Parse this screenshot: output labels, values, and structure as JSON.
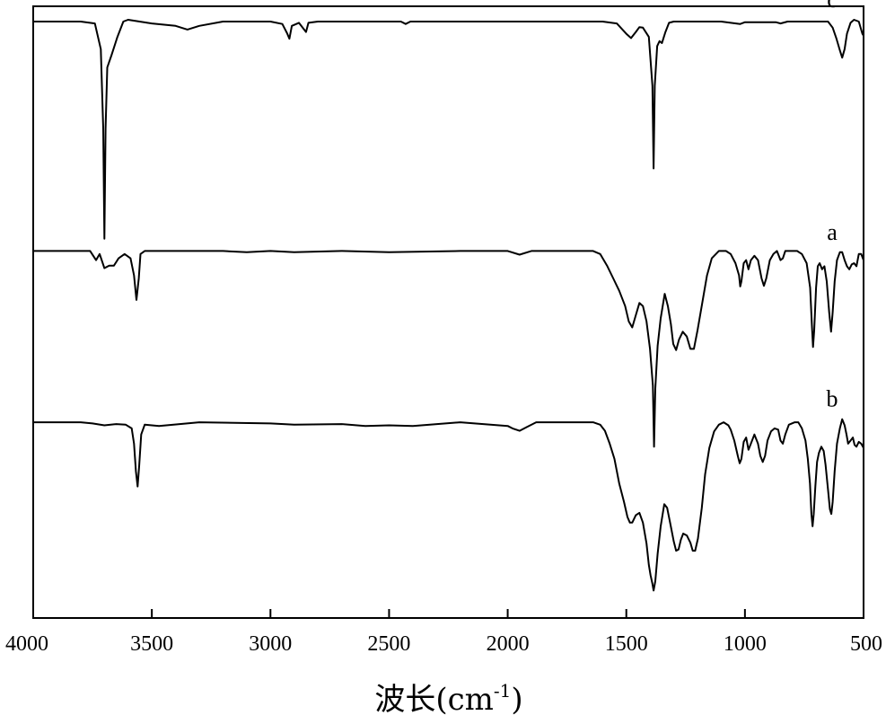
{
  "chart_data": {
    "type": "line",
    "xlabel": {
      "main": "波长(cm",
      "sup": "-1",
      "end": ")"
    },
    "ylabel": "",
    "xlim": [
      4000,
      500
    ],
    "xticks": [
      4000,
      3500,
      3000,
      2500,
      2000,
      1500,
      1000,
      500
    ],
    "ylim": [
      0,
      100
    ],
    "yticks": [],
    "grid": false,
    "legend": "none",
    "series": [
      {
        "name": "c",
        "points": [
          [
            4000,
            97.5
          ],
          [
            3800,
            97.5
          ],
          [
            3740,
            97.2
          ],
          [
            3715,
            93
          ],
          [
            3705,
            80
          ],
          [
            3700,
            62
          ],
          [
            3695,
            80
          ],
          [
            3688,
            90
          ],
          [
            3670,
            92
          ],
          [
            3645,
            95
          ],
          [
            3620,
            97.5
          ],
          [
            3600,
            97.8
          ],
          [
            3500,
            97.2
          ],
          [
            3400,
            96.8
          ],
          [
            3350,
            96.2
          ],
          [
            3300,
            96.8
          ],
          [
            3200,
            97.5
          ],
          [
            3000,
            97.5
          ],
          [
            2950,
            97.1
          ],
          [
            2930,
            95.6
          ],
          [
            2920,
            94.7
          ],
          [
            2910,
            96.8
          ],
          [
            2880,
            97.3
          ],
          [
            2860,
            96.3
          ],
          [
            2850,
            95.8
          ],
          [
            2840,
            97.3
          ],
          [
            2800,
            97.5
          ],
          [
            2450,
            97.5
          ],
          [
            2430,
            97.1
          ],
          [
            2410,
            97.5
          ],
          [
            1600,
            97.5
          ],
          [
            1540,
            97.2
          ],
          [
            1500,
            95.5
          ],
          [
            1480,
            94.8
          ],
          [
            1460,
            95.8
          ],
          [
            1445,
            96.6
          ],
          [
            1430,
            96.5
          ],
          [
            1405,
            95
          ],
          [
            1390,
            87
          ],
          [
            1385,
            73.5
          ],
          [
            1380,
            87
          ],
          [
            1370,
            93.5
          ],
          [
            1360,
            94.3
          ],
          [
            1350,
            94
          ],
          [
            1335,
            95.8
          ],
          [
            1320,
            97.3
          ],
          [
            1300,
            97.5
          ],
          [
            1100,
            97.5
          ],
          [
            1020,
            97.1
          ],
          [
            1000,
            97.4
          ],
          [
            870,
            97.4
          ],
          [
            850,
            97.2
          ],
          [
            820,
            97.5
          ],
          [
            650,
            97.5
          ],
          [
            630,
            96.5
          ],
          [
            615,
            94.8
          ],
          [
            600,
            92.8
          ],
          [
            590,
            91.6
          ],
          [
            580,
            93
          ],
          [
            570,
            95.5
          ],
          [
            555,
            97.3
          ],
          [
            540,
            97.8
          ],
          [
            520,
            97.5
          ],
          [
            505,
            95.5
          ],
          [
            500,
            95.2
          ]
        ]
      },
      {
        "name": "a",
        "points": [
          [
            4000,
            60
          ],
          [
            3760,
            60
          ],
          [
            3735,
            58.5
          ],
          [
            3720,
            59.5
          ],
          [
            3700,
            57.2
          ],
          [
            3680,
            57.6
          ],
          [
            3660,
            57.6
          ],
          [
            3640,
            58.8
          ],
          [
            3615,
            59.5
          ],
          [
            3590,
            58.8
          ],
          [
            3575,
            56
          ],
          [
            3565,
            52
          ],
          [
            3555,
            55.5
          ],
          [
            3548,
            59.5
          ],
          [
            3530,
            60
          ],
          [
            3200,
            60
          ],
          [
            3100,
            59.8
          ],
          [
            3000,
            60
          ],
          [
            2900,
            59.8
          ],
          [
            2700,
            60
          ],
          [
            2500,
            59.8
          ],
          [
            2200,
            60
          ],
          [
            2000,
            60
          ],
          [
            1950,
            59.4
          ],
          [
            1900,
            60
          ],
          [
            1640,
            60
          ],
          [
            1610,
            59.5
          ],
          [
            1580,
            57.5
          ],
          [
            1555,
            55.5
          ],
          [
            1530,
            53.5
          ],
          [
            1505,
            51
          ],
          [
            1490,
            48.5
          ],
          [
            1475,
            47.5
          ],
          [
            1460,
            49.5
          ],
          [
            1445,
            51.5
          ],
          [
            1430,
            51
          ],
          [
            1415,
            48.5
          ],
          [
            1400,
            44
          ],
          [
            1388,
            38
          ],
          [
            1383,
            28
          ],
          [
            1378,
            37.5
          ],
          [
            1368,
            44.5
          ],
          [
            1355,
            49
          ],
          [
            1338,
            53
          ],
          [
            1325,
            51
          ],
          [
            1312,
            48
          ],
          [
            1302,
            44.8
          ],
          [
            1290,
            43.8
          ],
          [
            1278,
            45.5
          ],
          [
            1262,
            46.8
          ],
          [
            1245,
            46
          ],
          [
            1230,
            44
          ],
          [
            1215,
            44
          ],
          [
            1200,
            47
          ],
          [
            1180,
            51.5
          ],
          [
            1160,
            56
          ],
          [
            1140,
            58.8
          ],
          [
            1110,
            60
          ],
          [
            1080,
            60
          ],
          [
            1060,
            59.5
          ],
          [
            1040,
            58
          ],
          [
            1025,
            56
          ],
          [
            1020,
            54.2
          ],
          [
            1015,
            55
          ],
          [
            1005,
            58
          ],
          [
            995,
            58.5
          ],
          [
            985,
            57
          ],
          [
            975,
            58.5
          ],
          [
            960,
            59.2
          ],
          [
            945,
            58.5
          ],
          [
            930,
            55.5
          ],
          [
            920,
            54.3
          ],
          [
            910,
            55.5
          ],
          [
            895,
            58.5
          ],
          [
            880,
            59.5
          ],
          [
            865,
            60
          ],
          [
            850,
            58.5
          ],
          [
            840,
            58.8
          ],
          [
            830,
            60
          ],
          [
            810,
            60
          ],
          [
            780,
            60
          ],
          [
            760,
            59.5
          ],
          [
            740,
            58
          ],
          [
            725,
            54
          ],
          [
            718,
            48
          ],
          [
            713,
            44.3
          ],
          [
            708,
            47
          ],
          [
            700,
            54
          ],
          [
            693,
            57.5
          ],
          [
            685,
            58
          ],
          [
            675,
            57
          ],
          [
            665,
            57.5
          ],
          [
            655,
            55
          ],
          [
            645,
            50
          ],
          [
            637,
            46.8
          ],
          [
            630,
            50
          ],
          [
            622,
            55
          ],
          [
            612,
            58.5
          ],
          [
            600,
            59.8
          ],
          [
            590,
            59.8
          ],
          [
            580,
            58.5
          ],
          [
            570,
            57.5
          ],
          [
            560,
            57
          ],
          [
            550,
            57.8
          ],
          [
            540,
            58
          ],
          [
            530,
            57.5
          ],
          [
            520,
            59.5
          ],
          [
            510,
            59.5
          ],
          [
            500,
            58.5
          ]
        ]
      },
      {
        "name": "b",
        "points": [
          [
            4000,
            32
          ],
          [
            3800,
            32
          ],
          [
            3750,
            31.8
          ],
          [
            3700,
            31.5
          ],
          [
            3650,
            31.7
          ],
          [
            3610,
            31.6
          ],
          [
            3585,
            31
          ],
          [
            3575,
            28.5
          ],
          [
            3567,
            24
          ],
          [
            3560,
            21.5
          ],
          [
            3553,
            25
          ],
          [
            3545,
            30
          ],
          [
            3530,
            31.6
          ],
          [
            3470,
            31.4
          ],
          [
            3300,
            32
          ],
          [
            3000,
            31.8
          ],
          [
            2900,
            31.6
          ],
          [
            2700,
            31.7
          ],
          [
            2600,
            31.4
          ],
          [
            2500,
            31.5
          ],
          [
            2400,
            31.4
          ],
          [
            2200,
            32
          ],
          [
            2000,
            31.4
          ],
          [
            1980,
            31
          ],
          [
            1950,
            30.6
          ],
          [
            1920,
            31.2
          ],
          [
            1880,
            32
          ],
          [
            1640,
            32
          ],
          [
            1610,
            31.6
          ],
          [
            1590,
            30.6
          ],
          [
            1570,
            28.5
          ],
          [
            1550,
            26
          ],
          [
            1530,
            22
          ],
          [
            1510,
            19
          ],
          [
            1495,
            16.5
          ],
          [
            1485,
            15.6
          ],
          [
            1475,
            15.6
          ],
          [
            1460,
            16.8
          ],
          [
            1445,
            17.2
          ],
          [
            1430,
            15.6
          ],
          [
            1415,
            12.2
          ],
          [
            1405,
            8.7
          ],
          [
            1398,
            7
          ],
          [
            1390,
            5.6
          ],
          [
            1385,
            4.5
          ],
          [
            1378,
            6
          ],
          [
            1368,
            10.5
          ],
          [
            1355,
            15
          ],
          [
            1340,
            18.6
          ],
          [
            1328,
            18
          ],
          [
            1315,
            15.5
          ],
          [
            1300,
            12.5
          ],
          [
            1290,
            11
          ],
          [
            1280,
            11.2
          ],
          [
            1270,
            12.8
          ],
          [
            1260,
            13.8
          ],
          [
            1245,
            13.5
          ],
          [
            1230,
            12.3
          ],
          [
            1220,
            11
          ],
          [
            1210,
            11
          ],
          [
            1198,
            13
          ],
          [
            1182,
            18
          ],
          [
            1168,
            23.5
          ],
          [
            1150,
            27.8
          ],
          [
            1130,
            30.5
          ],
          [
            1110,
            31.6
          ],
          [
            1090,
            32
          ],
          [
            1070,
            31.5
          ],
          [
            1060,
            30.8
          ],
          [
            1045,
            29
          ],
          [
            1030,
            26.5
          ],
          [
            1022,
            25.3
          ],
          [
            1015,
            26
          ],
          [
            1005,
            28.8
          ],
          [
            995,
            29.5
          ],
          [
            985,
            27.5
          ],
          [
            975,
            28.5
          ],
          [
            960,
            30
          ],
          [
            945,
            28.5
          ],
          [
            935,
            26.5
          ],
          [
            925,
            25.5
          ],
          [
            915,
            26.5
          ],
          [
            905,
            29
          ],
          [
            890,
            30.5
          ],
          [
            875,
            31
          ],
          [
            860,
            30.8
          ],
          [
            850,
            29
          ],
          [
            840,
            28.5
          ],
          [
            830,
            30
          ],
          [
            815,
            31.6
          ],
          [
            790,
            32
          ],
          [
            775,
            32
          ],
          [
            760,
            31
          ],
          [
            745,
            29
          ],
          [
            735,
            26
          ],
          [
            726,
            22
          ],
          [
            720,
            17
          ],
          [
            715,
            15
          ],
          [
            710,
            17
          ],
          [
            703,
            21.5
          ],
          [
            696,
            25.5
          ],
          [
            688,
            27
          ],
          [
            678,
            28
          ],
          [
            668,
            27.3
          ],
          [
            660,
            25
          ],
          [
            650,
            21
          ],
          [
            642,
            17.8
          ],
          [
            636,
            17
          ],
          [
            630,
            19
          ],
          [
            622,
            24
          ],
          [
            612,
            28.5
          ],
          [
            600,
            31
          ],
          [
            590,
            32.5
          ],
          [
            580,
            31.5
          ],
          [
            572,
            30
          ],
          [
            565,
            28.5
          ],
          [
            555,
            29
          ],
          [
            545,
            29.5
          ],
          [
            538,
            28.3
          ],
          [
            530,
            28
          ],
          [
            520,
            28.8
          ],
          [
            510,
            28.5
          ],
          [
            500,
            27.8
          ]
        ]
      }
    ]
  }
}
